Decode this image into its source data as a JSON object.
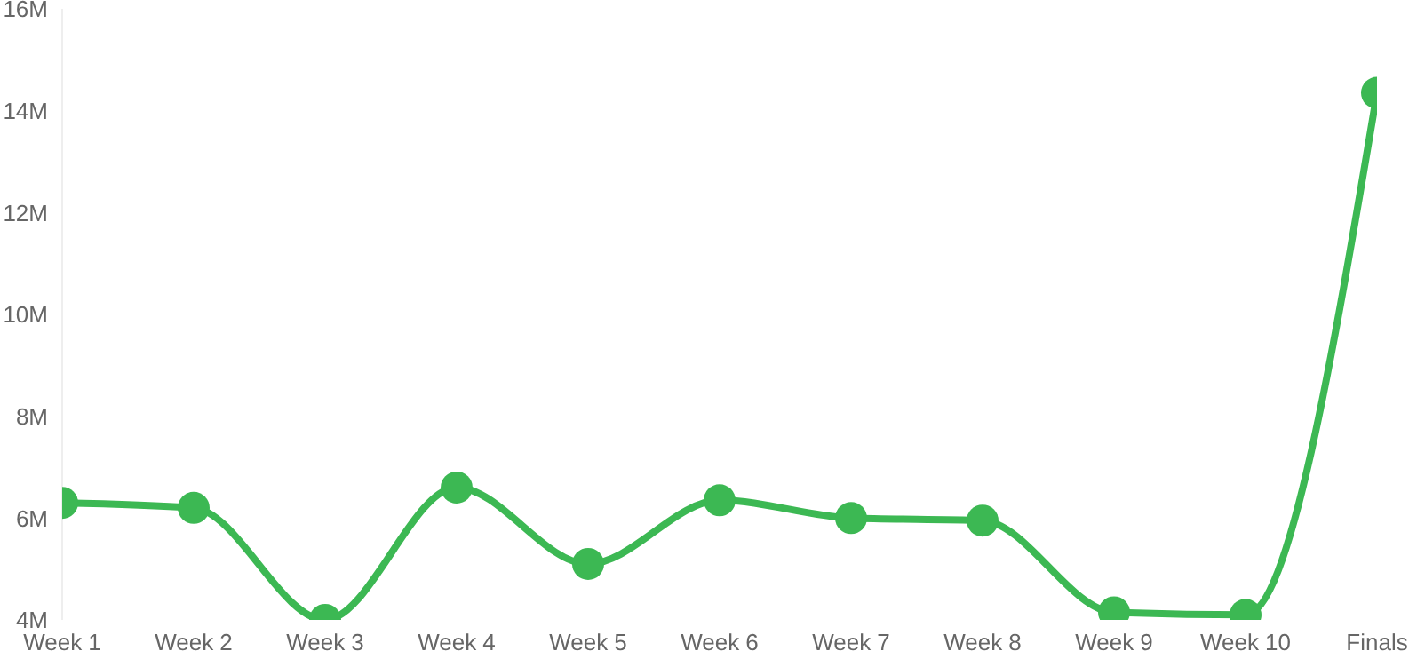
{
  "chart_data": {
    "type": "line",
    "categories": [
      "Week 1",
      "Week 2",
      "Week 3",
      "Week 4",
      "Week 5",
      "Week 6",
      "Week 7",
      "Week 8",
      "Week 9",
      "Week 10",
      "Finals"
    ],
    "series": [
      {
        "color": "#3cb853",
        "values": [
          6300000,
          6200000,
          4000000,
          6600000,
          5100000,
          6350000,
          6000000,
          5950000,
          4150000,
          4100000,
          14350000
        ]
      }
    ],
    "ylim": [
      4000000,
      16000000
    ],
    "yticks": [
      {
        "value": 4000000,
        "label": "4M"
      },
      {
        "value": 6000000,
        "label": "6M"
      },
      {
        "value": 8000000,
        "label": "8M"
      },
      {
        "value": 10000000,
        "label": "10M"
      },
      {
        "value": 12000000,
        "label": "12M"
      },
      {
        "value": 14000000,
        "label": "14M"
      },
      {
        "value": 16000000,
        "label": "16M"
      }
    ],
    "grid": false,
    "legend": false,
    "marker": "circle",
    "line_style": "solid"
  }
}
